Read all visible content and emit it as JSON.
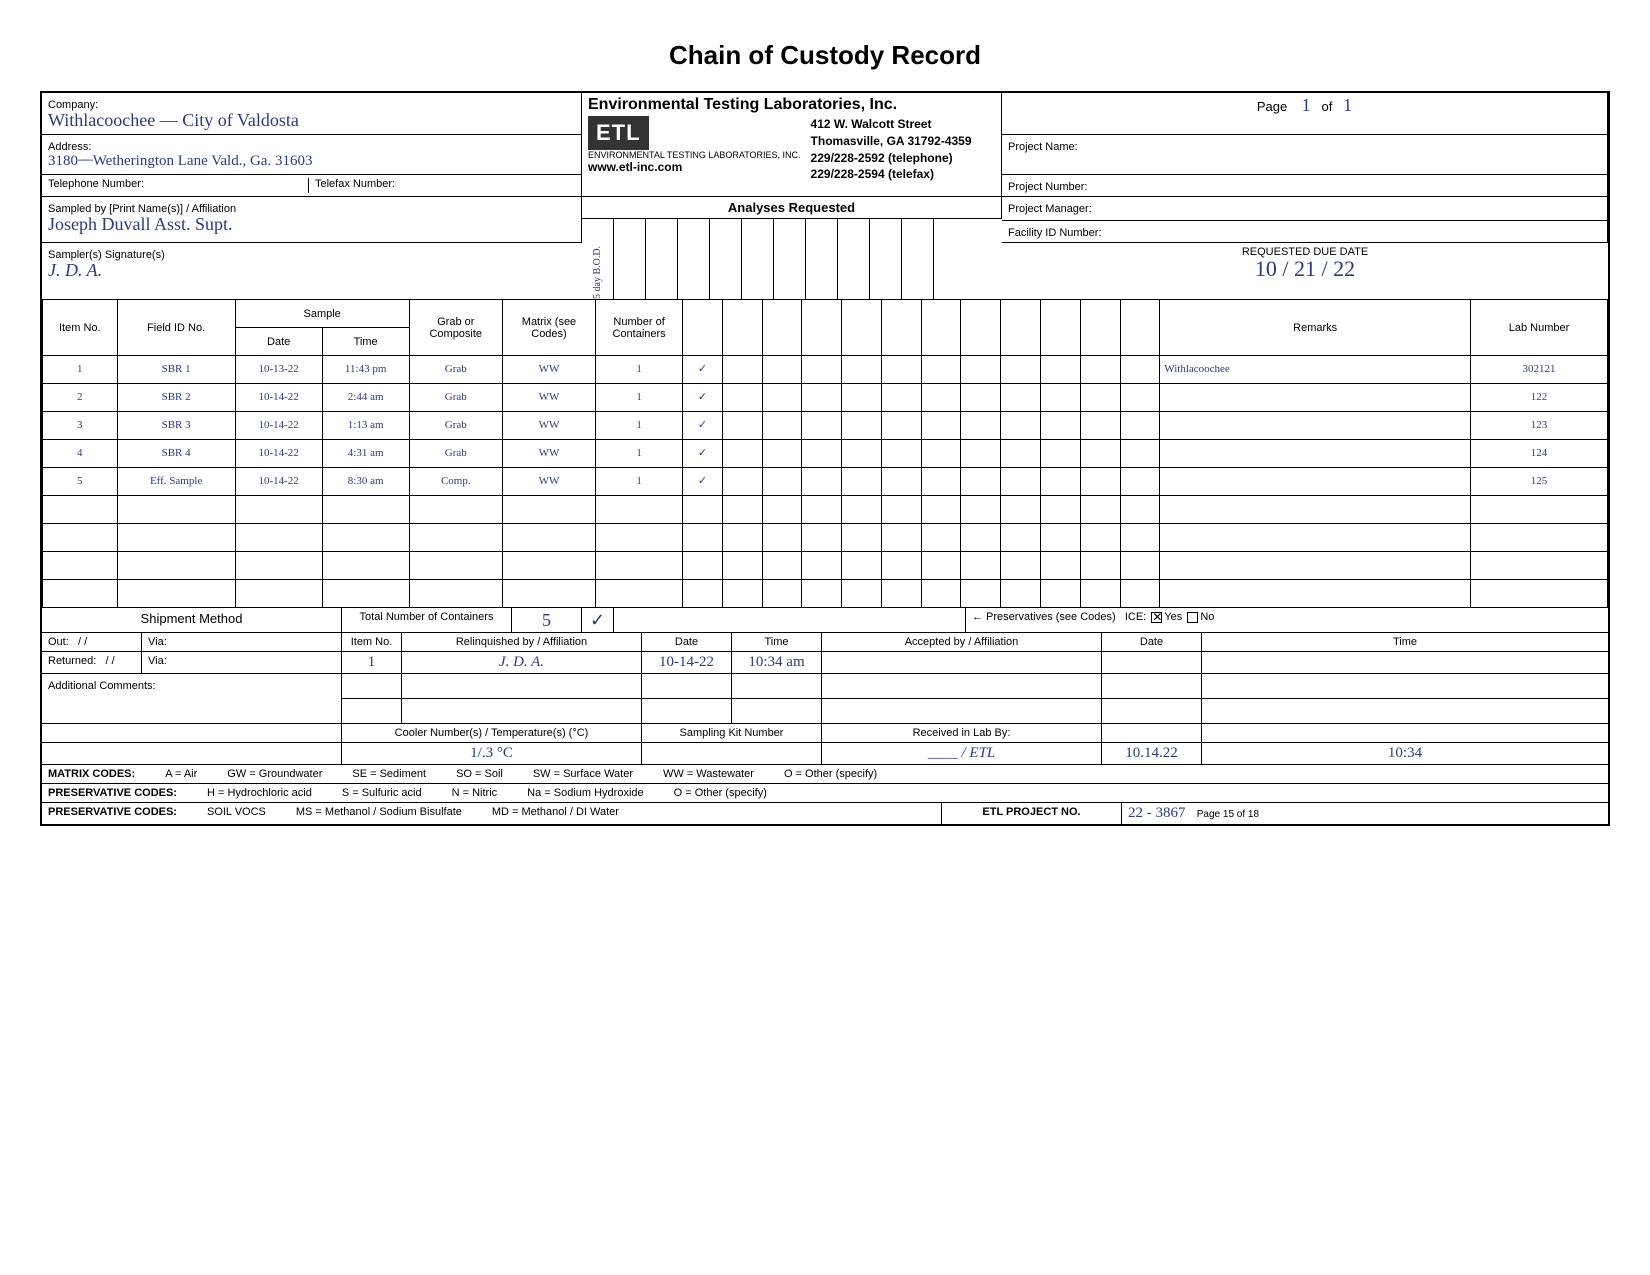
{
  "title": "Chain of Custody Record",
  "company_label": "Company:",
  "company_value": "Withlacoochee — City of Valdosta",
  "address_label": "Address:",
  "address_value": "3180  ̶ ̶ ̶   Wetherington Lane   Vald., Ga. 31603",
  "telephone_label": "Telephone Number:",
  "telefax_label": "Telefax Number:",
  "sampled_by_label": "Sampled by [Print Name(s)] / Affiliation",
  "sampled_by_value": "Joseph Duvall          Asst. Supt.",
  "signature_label": "Sampler(s) Signature(s)",
  "signature_value": "J. D. A.",
  "lab": {
    "name": "Environmental Testing Laboratories, Inc.",
    "logo_text": "ETL",
    "logo_sub": "ENVIRONMENTAL TESTING LABORATORIES, INC.",
    "addr1": "412 W. Walcott Street",
    "addr2": "Thomasville, GA 31792-4359",
    "phone": "229/228-2592  (telephone)",
    "fax_site": "www.etl-inc.com",
    "fax": "229/228-2594  (telefax)"
  },
  "right": {
    "page_label": "Page",
    "page_of": "of",
    "page_num": "1",
    "page_total": "1",
    "project_name": "Project Name:",
    "project_number": "Project Number:",
    "project_manager": "Project Manager:",
    "facility_id": "Facility ID Number:",
    "due_label": "REQUESTED DUE DATE",
    "due_value": "10 / 21 / 22"
  },
  "analyses_label": "Analyses Requested",
  "analysis_col": "5 day B.O.D.",
  "headers": {
    "item": "Item No.",
    "field": "Field ID No.",
    "sample": "Sample",
    "date": "Date",
    "time": "Time",
    "grab": "Grab or Composite",
    "matrix": "Matrix (see Codes)",
    "containers": "Number of Containers",
    "remarks": "Remarks",
    "lab_no": "Lab Number"
  },
  "rows": [
    {
      "item": "1",
      "field": "SBR 1",
      "date": "10-13-22",
      "time": "11:43 pm",
      "grab": "Grab",
      "matrix": "WW",
      "cont": "1",
      "mark": "✓",
      "remarks": "Withlacoochee",
      "lab": "302121"
    },
    {
      "item": "2",
      "field": "SBR 2",
      "date": "10-14-22",
      "time": "2:44 am",
      "grab": "Grab",
      "matrix": "WW",
      "cont": "1",
      "mark": "✓",
      "remarks": "",
      "lab": "122"
    },
    {
      "item": "3",
      "field": "SBR 3",
      "date": "10-14-22",
      "time": "1:13 am",
      "grab": "Grab",
      "matrix": "WW",
      "cont": "1",
      "mark": "✓",
      "remarks": "",
      "lab": "123"
    },
    {
      "item": "4",
      "field": "SBR 4",
      "date": "10-14-22",
      "time": "4:31 am",
      "grab": "Grab",
      "matrix": "WW",
      "cont": "1",
      "mark": "✓",
      "remarks": "",
      "lab": "124"
    },
    {
      "item": "5",
      "field": "Eff. Sample",
      "date": "10-14-22",
      "time": "8:30 am",
      "grab": "Comp.",
      "matrix": "WW",
      "cont": "1",
      "mark": "✓",
      "remarks": "",
      "lab": "125"
    }
  ],
  "shipment_label": "Shipment Method",
  "total_containers_label": "Total Number of Containers",
  "total_containers_value": "5",
  "total_mark": "✓",
  "preservatives_label": "← Preservatives (see Codes)",
  "ice_label": "ICE:",
  "ice_yes": "Yes",
  "ice_no": "No",
  "out_label": "Out:",
  "via_label": "Via:",
  "returned_label": "Returned:",
  "slash": "/    /",
  "relinq": {
    "item_label": "Item No.",
    "relinq_label": "Relinquished by / Affiliation",
    "date_label": "Date",
    "time_label": "Time",
    "accepted_label": "Accepted by / Affiliation",
    "row_item": "1",
    "row_sig": "J. D. A.",
    "row_date": "10-14-22",
    "row_time": "10:34 am"
  },
  "add_comments": "Additional Comments:",
  "cooler_label": "Cooler Number(s) / Temperature(s) (°C)",
  "cooler_value": "1/.3 °C",
  "kit_label": "Sampling Kit Number",
  "received_label": "Received in Lab By:",
  "received_sig": "____ / ETL",
  "received_date": "10.14.22",
  "received_time": "10:34",
  "matrix_codes": {
    "label": "MATRIX CODES:",
    "a": "A = Air",
    "gw": "GW = Groundwater",
    "se": "SE = Sediment",
    "so": "SO = Soil",
    "sw": "SW = Surface Water",
    "ww": "WW = Wastewater",
    "o": "O = Other (specify)"
  },
  "pres_codes1": {
    "label": "PRESERVATIVE CODES:",
    "h": "H = Hydrochloric acid",
    "s": "S = Sulfuric acid",
    "n": "N = Nitric",
    "na": "Na = Sodium Hydroxide",
    "o": "O = Other (specify)"
  },
  "pres_codes2": {
    "label": "PRESERVATIVE CODES:",
    "sv": "SOIL VOCS",
    "ms": "MS = Methanol / Sodium Bisulfate",
    "md": "MD = Methanol / DI Water"
  },
  "etl_proj_label": "ETL PROJECT NO.",
  "etl_proj_value": "22 - 3867",
  "page_footer": "Page 15 of 18"
}
